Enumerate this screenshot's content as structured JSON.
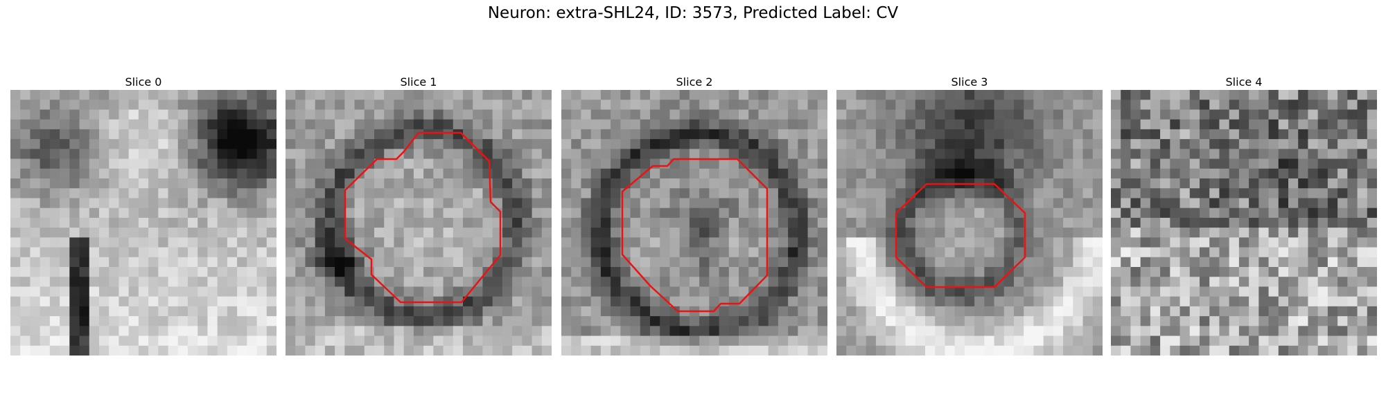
{
  "figure_title": "Neuron: extra-SHL24, ID: 3573, Predicted Label: CV",
  "outline_color": "#ee1111",
  "slices": [
    {
      "label": "Slice 0",
      "has_outline": false
    },
    {
      "label": "Slice 1",
      "has_outline": true
    },
    {
      "label": "Slice 2",
      "has_outline": true
    },
    {
      "label": "Slice 3",
      "has_outline": true
    },
    {
      "label": "Slice 4",
      "has_outline": false
    }
  ]
}
